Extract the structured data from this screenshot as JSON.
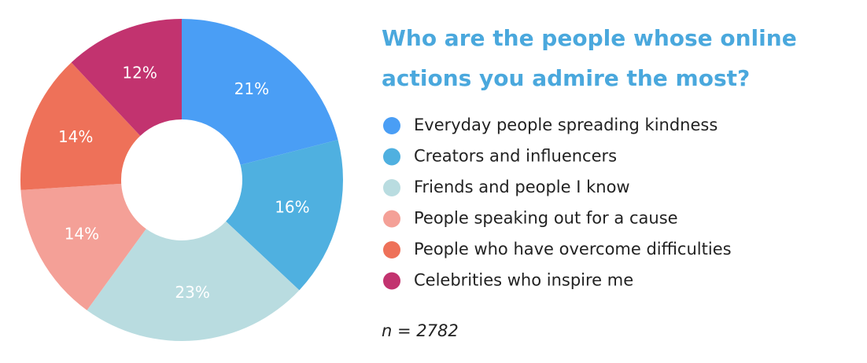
{
  "chart_data": {
    "type": "donut",
    "title": [
      "Who are the people whose online",
      "actions you admire the most?"
    ],
    "categories": [
      "Everyday people spreading kindness",
      "Creators and influencers",
      "Friends and people I know",
      "People speaking out for a cause",
      "People who have overcome difficulties",
      "Celebrities who inspire me"
    ],
    "values": [
      21,
      16,
      23,
      14,
      14,
      12
    ],
    "value_labels": [
      "21%",
      "16%",
      "23%",
      "14%",
      "14%",
      "12%"
    ],
    "colors": [
      "#4a9ef5",
      "#4fb0e0",
      "#b9dce0",
      "#f4a097",
      "#ee7159",
      "#c2336f"
    ],
    "note": "n = 2782"
  }
}
